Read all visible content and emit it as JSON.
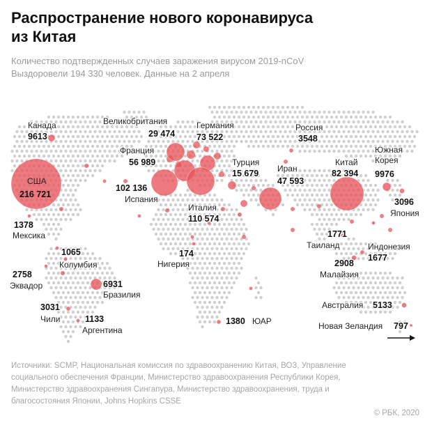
{
  "title_line1": "Распространение нового коронавируса",
  "title_line2": "из Китая",
  "subtitle_line1": "Количество подтвержденных случаев заражения вирусом 2019-nCoV",
  "subtitle_line2": "Выздоровели 194 330 человек. Данные на 2 апреля",
  "colors": {
    "bubble": "#e8555b",
    "dot": "#cfcfcf",
    "arrow": "#111111"
  },
  "countries": [
    {
      "id": "usa",
      "name": "США",
      "cases": "216 721"
    },
    {
      "id": "canada",
      "name": "Канада",
      "cases": "9613"
    },
    {
      "id": "mexico",
      "name": "Мексика",
      "cases": "1378"
    },
    {
      "id": "colombia",
      "name": "Колумбия",
      "cases": "1065"
    },
    {
      "id": "ecuador",
      "name": "Эквадор",
      "cases": "2758"
    },
    {
      "id": "brazil",
      "name": "Бразилия",
      "cases": "6931"
    },
    {
      "id": "chile",
      "name": "Чили",
      "cases": "3031"
    },
    {
      "id": "argentina",
      "name": "Аргентина",
      "cases": "1133"
    },
    {
      "id": "uk",
      "name": "Великобритания",
      "cases": "29 474"
    },
    {
      "id": "germany",
      "name": "Германия",
      "cases": "73 522"
    },
    {
      "id": "france",
      "name": "Франция",
      "cases": "56 989"
    },
    {
      "id": "spain",
      "name": "Испания",
      "cases": "102 136"
    },
    {
      "id": "italy",
      "name": "Италия",
      "cases": "110 574"
    },
    {
      "id": "turkey",
      "name": "Турция",
      "cases": "15 679"
    },
    {
      "id": "russia",
      "name": "Россия",
      "cases": "3548"
    },
    {
      "id": "iran",
      "name": "Иран",
      "cases": "47 593"
    },
    {
      "id": "china",
      "name": "Китай",
      "cases": "82 394"
    },
    {
      "id": "skorea",
      "name": "Южная Корея",
      "cases": "9976"
    },
    {
      "id": "japan",
      "name": "Япония",
      "cases": "3096"
    },
    {
      "id": "thailand",
      "name": "Таиланд",
      "cases": "1771"
    },
    {
      "id": "indonesia",
      "name": "Индонезия",
      "cases": "1677"
    },
    {
      "id": "malaysia",
      "name": "Малайзия",
      "cases": "2908"
    },
    {
      "id": "nigeria",
      "name": "Нигерия",
      "cases": "174"
    },
    {
      "id": "sa",
      "name": "ЮАР",
      "cases": "1380"
    },
    {
      "id": "australia",
      "name": "Австралия",
      "cases": "5133"
    },
    {
      "id": "nz",
      "name": "Новая Зеландия",
      "cases": "797"
    }
  ],
  "sources": "Источники: SCMP, Национальная комиссия по здравоохранению Китая, ВОЗ, Управление социального обеспечения Франции, Министерство здравоохранения Республики Корея, Министерство здравоохранения Сингапура, Министерство здравоохранения, труда и благосостояния Японии, Johns Hopkins CSSE",
  "copyright": "© РБК, 2020"
}
